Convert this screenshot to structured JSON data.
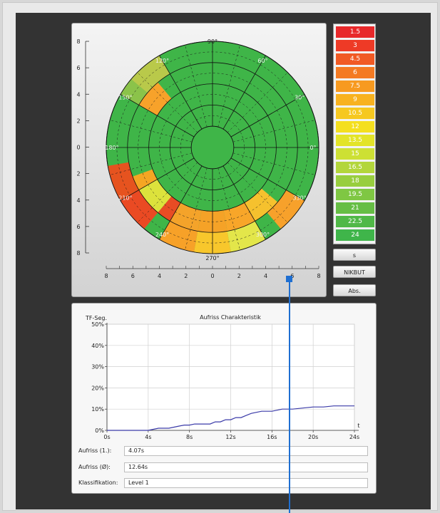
{
  "polar": {
    "angle_labels": [
      "90°",
      "60°",
      "30°",
      "0°",
      "330°",
      "300°",
      "270°",
      "240°",
      "210°",
      "180°",
      "150°",
      "120°"
    ],
    "y_ticks": [
      "8",
      "6",
      "4",
      "2",
      "0",
      "2",
      "4",
      "6",
      "8"
    ],
    "x_ticks": [
      "8",
      "6",
      "4",
      "2",
      "0",
      "2",
      "4",
      "6",
      "8"
    ],
    "base_color": "#3fb548",
    "cells": [
      {
        "a1": 120,
        "a2": 140,
        "r1": 4,
        "r2": 5,
        "color": "#b9c94a"
      },
      {
        "a1": 140,
        "a2": 150,
        "r1": 4,
        "r2": 5,
        "color": "#8bc34a"
      },
      {
        "a1": 130,
        "a2": 150,
        "r1": 3,
        "r2": 4,
        "color": "#f7a22a"
      },
      {
        "a1": 190,
        "a2": 210,
        "r1": 4,
        "r2": 5,
        "color": "#e6531f"
      },
      {
        "a1": 210,
        "a2": 230,
        "r1": 4,
        "r2": 5,
        "color": "#ea4a23"
      },
      {
        "a1": 200,
        "a2": 210,
        "r1": 3,
        "r2": 4,
        "color": "#f5a623"
      },
      {
        "a1": 210,
        "a2": 230,
        "r1": 3,
        "r2": 4,
        "color": "#dce23c"
      },
      {
        "a1": 230,
        "a2": 240,
        "r1": 3,
        "r2": 4,
        "color": "#e84c24"
      },
      {
        "a1": 240,
        "a2": 260,
        "r1": 3,
        "r2": 4,
        "color": "#f4a32a"
      },
      {
        "a1": 240,
        "a2": 260,
        "r1": 4,
        "r2": 5,
        "color": "#f7a128"
      },
      {
        "a1": 260,
        "a2": 280,
        "r1": 3,
        "r2": 4,
        "color": "#f5a227"
      },
      {
        "a1": 260,
        "a2": 280,
        "r1": 4,
        "r2": 5,
        "color": "#f8c72c"
      },
      {
        "a1": 280,
        "a2": 300,
        "r1": 3,
        "r2": 4,
        "color": "#f8a629"
      },
      {
        "a1": 280,
        "a2": 300,
        "r1": 4,
        "r2": 5,
        "color": "#e3e64a"
      },
      {
        "a1": 300,
        "a2": 320,
        "r1": 3,
        "r2": 4,
        "color": "#f5c12e"
      },
      {
        "a1": 310,
        "a2": 330,
        "r1": 4,
        "r2": 5,
        "color": "#f7a12b"
      }
    ]
  },
  "legend": [
    {
      "label": "1.5",
      "color": "#e8282a"
    },
    {
      "label": "3",
      "color": "#ee3a26"
    },
    {
      "label": "4.5",
      "color": "#f15a24"
    },
    {
      "label": "6",
      "color": "#f47a22"
    },
    {
      "label": "7.5",
      "color": "#f79a20"
    },
    {
      "label": "9",
      "color": "#f8b21f"
    },
    {
      "label": "10.5",
      "color": "#f6c820"
    },
    {
      "label": "12",
      "color": "#f4df1f"
    },
    {
      "label": "13.5",
      "color": "#e3e428"
    },
    {
      "label": "15",
      "color": "#cde034"
    },
    {
      "label": "16.5",
      "color": "#b3d63b"
    },
    {
      "label": "18",
      "color": "#98ce3e"
    },
    {
      "label": "19.5",
      "color": "#7fc743"
    },
    {
      "label": "21",
      "color": "#66be45"
    },
    {
      "label": "22.5",
      "color": "#50b847"
    },
    {
      "label": "24",
      "color": "#3fb54a"
    }
  ],
  "buttons": {
    "s": "s",
    "nikbut": "NIKBUT",
    "abs": "Abs."
  },
  "chart_data": {
    "type": "line",
    "title": "Aufriss Charakteristik",
    "ylabel": "TF-Seg.",
    "xlabel": "t",
    "x_ticks": [
      "0s",
      "4s",
      "8s",
      "12s",
      "16s",
      "20s",
      "24s"
    ],
    "y_ticks": [
      "0%",
      "10%",
      "20%",
      "30%",
      "40%",
      "50%"
    ],
    "xlim": [
      0,
      24
    ],
    "ylim": [
      0,
      50
    ],
    "grid": true,
    "line_color": "#3a3aa8",
    "x": [
      0,
      4,
      4.5,
      5,
      6,
      6.5,
      7,
      7.5,
      8,
      8.5,
      9,
      10,
      10.5,
      11,
      11.5,
      12,
      12.5,
      13,
      13.5,
      14,
      15,
      16,
      17,
      18,
      19,
      20,
      21,
      22,
      23,
      24
    ],
    "y": [
      0,
      0,
      0.5,
      1,
      1,
      1.5,
      2,
      2.5,
      2.5,
      3,
      3,
      3,
      4,
      4,
      5,
      5,
      6,
      6,
      7,
      8,
      9,
      9,
      10,
      10,
      10.5,
      11,
      11,
      11.5,
      11.5,
      11.5
    ]
  },
  "fields": [
    {
      "label": "Aufriss (1.):",
      "value": "4.07s"
    },
    {
      "label": "Aufriss (Ø):",
      "value": "12.64s"
    },
    {
      "label": "Klassifikation:",
      "value": "Level 1"
    }
  ]
}
